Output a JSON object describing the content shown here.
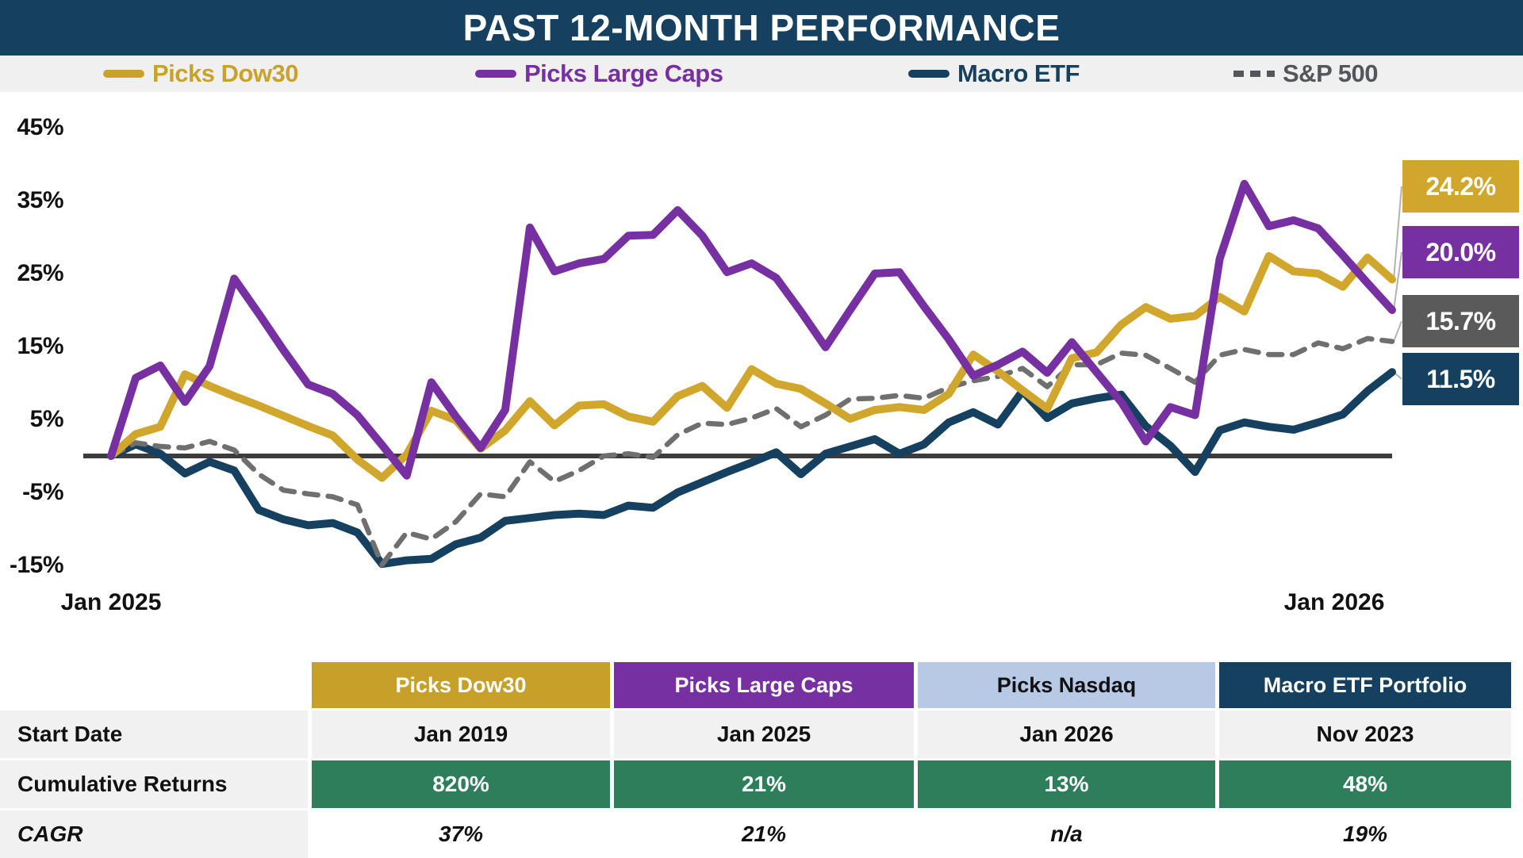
{
  "app": {
    "title": "PAST 12-MONTH PERFORMANCE"
  },
  "colors": {
    "navy": "#15405F",
    "gold": "#D0A62C",
    "purple": "#7630A1",
    "gray_line": "#6F6F6F",
    "gray_label_bg": "#5A5A5A",
    "green_row": "#2E7D5B",
    "light_blue_header": "#B7C9E5",
    "zero_line": "#3C3C3C"
  },
  "chart_data": {
    "type": "line",
    "title": "PAST 12-MONTH PERFORMANCE",
    "x_axis": {
      "labels": [
        "Jan 2025",
        "Jan 2026"
      ],
      "points_per_series": 53,
      "interval": "weekly"
    },
    "y_axis": {
      "unit": "%",
      "range": [
        -15,
        45
      ],
      "ticks": [
        {
          "label": "45%",
          "value": 45
        },
        {
          "label": "35%",
          "value": 35
        },
        {
          "label": "25%",
          "value": 25
        },
        {
          "label": "15%",
          "value": 15
        },
        {
          "label": "5%",
          "value": 5
        },
        {
          "label": "-5%",
          "value": -5
        },
        {
          "label": "-15%",
          "value": -15
        }
      ]
    },
    "zero_line": true,
    "grid": false,
    "legend_position": "top",
    "legend": [
      {
        "label": "Picks Dow30",
        "color": "#C9A22C",
        "dash": "solid"
      },
      {
        "label": "Picks Large Caps",
        "color": "#7630A1",
        "dash": "solid"
      },
      {
        "label": "Macro ETF",
        "color": "#15405F",
        "dash": "solid"
      },
      {
        "label": "S&P 500",
        "color": "#55565B",
        "dash": "dashed"
      }
    ],
    "series": [
      {
        "name": "Picks Dow30",
        "color": "#D0A62C",
        "style": "solid",
        "end_label": "24.2%",
        "values": [
          0,
          3.0,
          4.0,
          11.2,
          9.6,
          8.2,
          6.9,
          5.5,
          4.1,
          2.8,
          -0.5,
          -3.0,
          0.2,
          6.2,
          4.9,
          1.0,
          3.5,
          7.5,
          4.2,
          6.9,
          7.1,
          5.4,
          4.7,
          8.2,
          9.6,
          6.6,
          11.9,
          9.9,
          9.2,
          7.2,
          5.1,
          6.3,
          6.7,
          6.3,
          8.5,
          13.9,
          11.6,
          9.0,
          6.5,
          13.4,
          14.2,
          18.0,
          20.4,
          18.8,
          19.2,
          21.8,
          19.8,
          27.4,
          25.3,
          25.0,
          23.2,
          27.2,
          24.2
        ]
      },
      {
        "name": "Picks Large Caps",
        "color": "#7630A1",
        "style": "solid",
        "end_label": "20.0%",
        "values": [
          0,
          10.7,
          12.4,
          7.4,
          12.3,
          24.3,
          19.5,
          14.5,
          9.8,
          8.5,
          5.6,
          1.5,
          -2.7,
          10.1,
          5.4,
          1.1,
          6.3,
          31.3,
          25.3,
          26.4,
          27.0,
          30.2,
          30.3,
          33.7,
          30.2,
          25.2,
          26.4,
          24.4,
          19.8,
          14.9,
          20.0,
          25.0,
          25.2,
          20.5,
          16.0,
          11.0,
          12.5,
          14.3,
          11.4,
          15.6,
          11.5,
          7.4,
          2.0,
          6.7,
          5.6,
          27.0,
          37.3,
          31.5,
          32.3,
          31.2,
          27.5,
          23.7,
          20.0
        ]
      },
      {
        "name": "Macro ETF",
        "color": "#15405F",
        "style": "solid",
        "end_label": "11.5%",
        "values": [
          0,
          1.6,
          0.3,
          -2.4,
          -0.8,
          -2.0,
          -7.4,
          -8.7,
          -9.5,
          -9.2,
          -10.5,
          -14.8,
          -14.3,
          -14.1,
          -12.1,
          -11.2,
          -8.9,
          -8.5,
          -8.1,
          -7.9,
          -8.1,
          -6.8,
          -7.1,
          -5.0,
          -3.6,
          -2.2,
          -0.9,
          0.5,
          -2.5,
          0.3,
          1.3,
          2.3,
          0.3,
          1.6,
          4.6,
          6.0,
          4.3,
          8.9,
          5.2,
          7.2,
          7.9,
          8.4,
          4.1,
          1.4,
          -2.2,
          3.5,
          4.6,
          4.0,
          3.6,
          4.6,
          5.7,
          8.9,
          11.5
        ]
      },
      {
        "name": "S&P 500",
        "color": "#6F6F6F",
        "style": "dashed",
        "end_label": "15.7%",
        "values": [
          0,
          1.8,
          1.3,
          1.1,
          2.0,
          0.8,
          -2.5,
          -4.7,
          -5.2,
          -5.6,
          -6.7,
          -14.9,
          -10.5,
          -11.4,
          -9.0,
          -5.2,
          -5.6,
          -0.8,
          -3.5,
          -2.0,
          0.0,
          0.3,
          -0.2,
          2.9,
          4.5,
          4.3,
          5.2,
          6.5,
          4.0,
          5.6,
          7.8,
          7.9,
          8.3,
          7.9,
          9.4,
          10.3,
          10.9,
          12.0,
          9.5,
          12.5,
          12.5,
          14.1,
          13.8,
          12.0,
          10.1,
          13.8,
          14.6,
          13.9,
          13.9,
          15.5,
          14.7,
          16.1,
          15.7
        ]
      }
    ],
    "end_labels": [
      {
        "text": "24.2%",
        "bg": "#D0A62C",
        "series": 0
      },
      {
        "text": "20.0%",
        "bg": "#7630A1",
        "series": 1
      },
      {
        "text": "15.7%",
        "bg": "#5A5A5A",
        "series": 3
      },
      {
        "text": "11.5%",
        "bg": "#15405F",
        "series": 2
      }
    ]
  },
  "table": {
    "columns": [
      {
        "label": "Picks Dow30",
        "bg": "#C7A02A",
        "fg": "#ffffff"
      },
      {
        "label": "Picks Large Caps",
        "bg": "#7630A1",
        "fg": "#ffffff"
      },
      {
        "label": "Picks Nasdaq",
        "bg": "#B7C9E5",
        "fg": "#111111"
      },
      {
        "label": "Macro ETF Portfolio",
        "bg": "#15405F",
        "fg": "#ffffff"
      }
    ],
    "rows": [
      {
        "label": "Start Date",
        "style": "plain",
        "values": [
          "Jan 2019",
          "Jan 2025",
          "Jan 2026",
          "Nov 2023"
        ]
      },
      {
        "label": "Cumulative Returns",
        "style": "green",
        "values": [
          "820%",
          "21%",
          "13%",
          "48%"
        ]
      },
      {
        "label": "CAGR",
        "style": "italic",
        "values": [
          "37%",
          "21%",
          "n/a",
          "19%"
        ]
      }
    ]
  }
}
